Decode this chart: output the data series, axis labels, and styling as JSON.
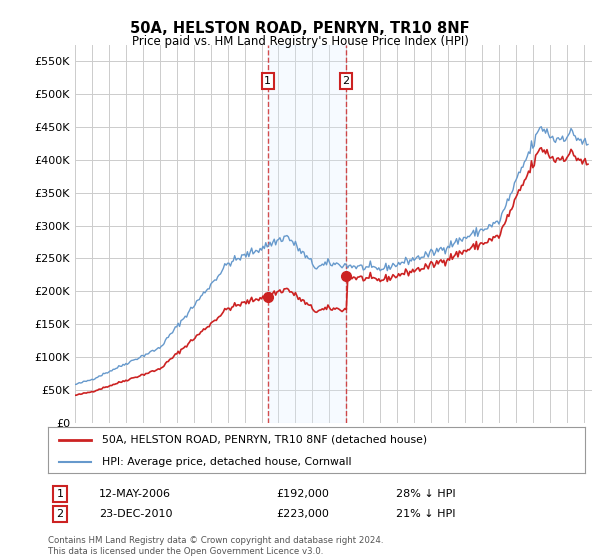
{
  "title": "50A, HELSTON ROAD, PENRYN, TR10 8NF",
  "subtitle": "Price paid vs. HM Land Registry's House Price Index (HPI)",
  "xlim_start": 1995.0,
  "xlim_end": 2025.5,
  "ylim_min": 0,
  "ylim_max": 575000,
  "yticks": [
    0,
    50000,
    100000,
    150000,
    200000,
    250000,
    300000,
    350000,
    400000,
    450000,
    500000,
    550000
  ],
  "ytick_labels": [
    "£0",
    "£50K",
    "£100K",
    "£150K",
    "£200K",
    "£250K",
    "£300K",
    "£350K",
    "£400K",
    "£450K",
    "£500K",
    "£550K"
  ],
  "hpi_color": "#6699cc",
  "price_color": "#cc2222",
  "shading_color": "#ddeeff",
  "purchase1_x": 2006.37,
  "purchase1_y": 192000,
  "purchase2_x": 2010.98,
  "purchase2_y": 223000,
  "legend_label1": "50A, HELSTON ROAD, PENRYN, TR10 8NF (detached house)",
  "legend_label2": "HPI: Average price, detached house, Cornwall",
  "table_row1_date": "12-MAY-2006",
  "table_row1_price": "£192,000",
  "table_row1_hpi": "28% ↓ HPI",
  "table_row2_date": "23-DEC-2010",
  "table_row2_price": "£223,000",
  "table_row2_hpi": "21% ↓ HPI",
  "footnote": "Contains HM Land Registry data © Crown copyright and database right 2024.\nThis data is licensed under the Open Government Licence v3.0.",
  "background_color": "#ffffff",
  "grid_color": "#cccccc"
}
